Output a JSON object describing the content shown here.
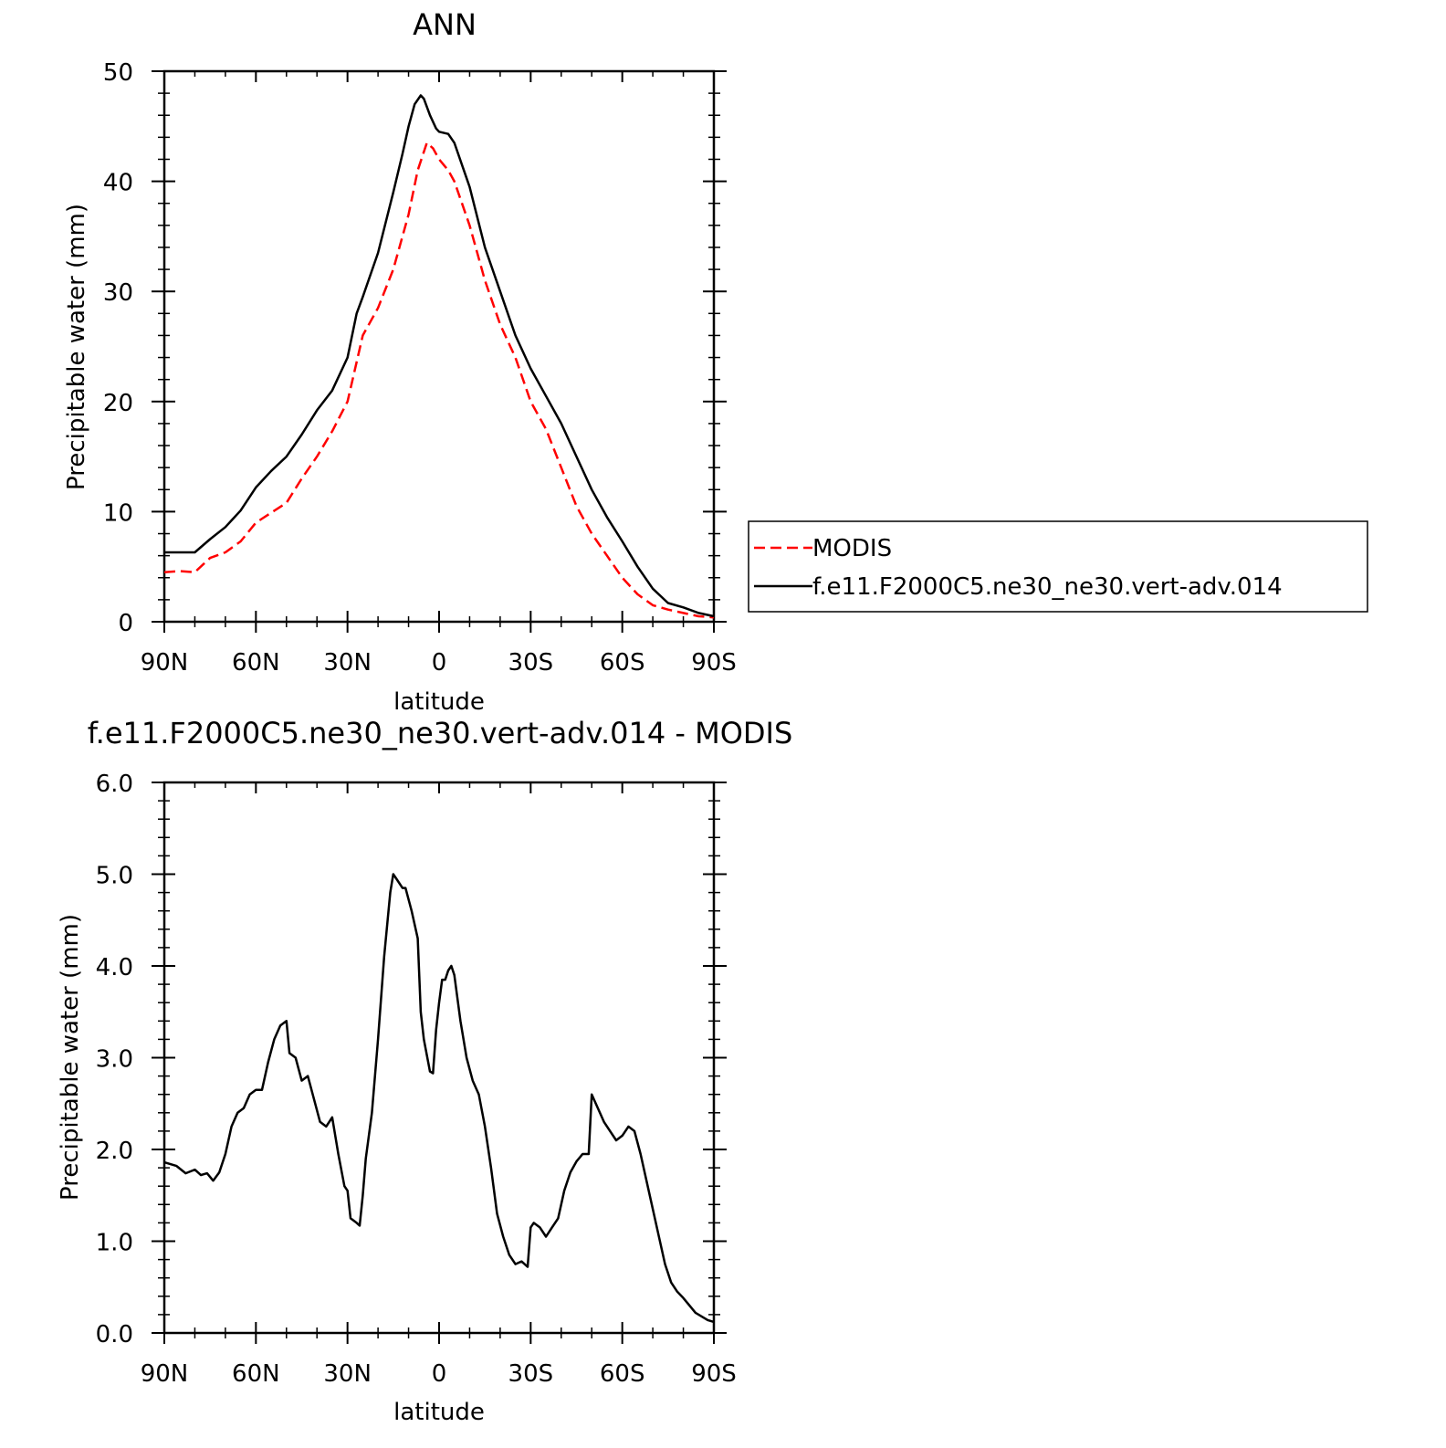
{
  "chart_data": [
    {
      "type": "line",
      "title": "ANN",
      "xlabel": "latitude",
      "ylabel": "Precipitable water (mm)",
      "xlim": [
        90,
        -90
      ],
      "ylim": [
        0,
        50
      ],
      "x_ticks": [
        90,
        60,
        30,
        0,
        -30,
        -60,
        -90
      ],
      "x_tick_labels": [
        "90N",
        "60N",
        "30N",
        "0",
        "30S",
        "60S",
        "90S"
      ],
      "y_ticks": [
        0,
        10,
        20,
        30,
        40,
        50
      ],
      "y_tick_labels": [
        "0",
        "10",
        "20",
        "30",
        "40",
        "50"
      ],
      "legend_position": "right",
      "series": [
        {
          "name": "MODIS",
          "color": "#ff0000",
          "style": "dashed",
          "points": [
            [
              90,
              4.5
            ],
            [
              85,
              4.6
            ],
            [
              80,
              4.5
            ],
            [
              75,
              5.8
            ],
            [
              70,
              6.3
            ],
            [
              65,
              7.3
            ],
            [
              60,
              9.0
            ],
            [
              55,
              9.9
            ],
            [
              50,
              10.8
            ],
            [
              45,
              13.0
            ],
            [
              40,
              15.0
            ],
            [
              35,
              17.3
            ],
            [
              30,
              20.0
            ],
            [
              25,
              26.0
            ],
            [
              20,
              28.5
            ],
            [
              15,
              32.0
            ],
            [
              10,
              37.0
            ],
            [
              7,
              41.0
            ],
            [
              4,
              43.5
            ],
            [
              2,
              43.0
            ],
            [
              0,
              42.0
            ],
            [
              -3,
              41.0
            ],
            [
              -5,
              40.0
            ],
            [
              -10,
              36.0
            ],
            [
              -15,
              31.0
            ],
            [
              -20,
              27.0
            ],
            [
              -25,
              24.0
            ],
            [
              -30,
              20.0
            ],
            [
              -35,
              17.5
            ],
            [
              -40,
              14.0
            ],
            [
              -45,
              10.5
            ],
            [
              -50,
              8.0
            ],
            [
              -55,
              6.0
            ],
            [
              -60,
              4.0
            ],
            [
              -65,
              2.5
            ],
            [
              -70,
              1.5
            ],
            [
              -75,
              1.1
            ],
            [
              -80,
              0.8
            ],
            [
              -85,
              0.5
            ],
            [
              -90,
              0.4
            ]
          ]
        },
        {
          "name": "f.e11.F2000C5.ne30_ne30.vert-adv.014",
          "color": "#000000",
          "style": "solid",
          "points": [
            [
              90,
              6.3
            ],
            [
              85,
              6.3
            ],
            [
              80,
              6.3
            ],
            [
              75,
              7.5
            ],
            [
              70,
              8.6
            ],
            [
              65,
              10.1
            ],
            [
              60,
              12.2
            ],
            [
              55,
              13.7
            ],
            [
              50,
              15.0
            ],
            [
              45,
              17.0
            ],
            [
              40,
              19.2
            ],
            [
              35,
              21.0
            ],
            [
              30,
              24.0
            ],
            [
              27,
              28.0
            ],
            [
              25,
              29.5
            ],
            [
              20,
              33.5
            ],
            [
              15,
              39.0
            ],
            [
              12,
              42.5
            ],
            [
              10,
              45.0
            ],
            [
              8,
              47.0
            ],
            [
              6,
              47.8
            ],
            [
              5,
              47.5
            ],
            [
              3,
              46.0
            ],
            [
              1,
              44.8
            ],
            [
              0,
              44.5
            ],
            [
              -3,
              44.3
            ],
            [
              -5,
              43.5
            ],
            [
              -10,
              39.5
            ],
            [
              -15,
              34.0
            ],
            [
              -20,
              30.0
            ],
            [
              -25,
              26.0
            ],
            [
              -30,
              23.0
            ],
            [
              -35,
              20.5
            ],
            [
              -40,
              18.0
            ],
            [
              -45,
              15.0
            ],
            [
              -50,
              12.0
            ],
            [
              -55,
              9.5
            ],
            [
              -60,
              7.3
            ],
            [
              -65,
              5.0
            ],
            [
              -70,
              3.0
            ],
            [
              -75,
              1.7
            ],
            [
              -80,
              1.3
            ],
            [
              -85,
              0.8
            ],
            [
              -90,
              0.5
            ]
          ]
        }
      ]
    },
    {
      "type": "line",
      "title": "f.e11.F2000C5.ne30_ne30.vert-adv.014 - MODIS",
      "xlabel": "latitude",
      "ylabel": "Precipitable water (mm)",
      "xlim": [
        90,
        -90
      ],
      "ylim": [
        0,
        6
      ],
      "x_ticks": [
        90,
        60,
        30,
        0,
        -30,
        -60,
        -90
      ],
      "x_tick_labels": [
        "90N",
        "60N",
        "30N",
        "0",
        "30S",
        "60S",
        "90S"
      ],
      "y_ticks": [
        0,
        1,
        2,
        3,
        4,
        5,
        6
      ],
      "y_tick_labels": [
        "0.0",
        "1.0",
        "2.0",
        "3.0",
        "4.0",
        "5.0",
        "6.0"
      ],
      "series": [
        {
          "color": "#000000",
          "style": "solid",
          "points": [
            [
              90,
              1.86
            ],
            [
              86,
              1.82
            ],
            [
              83,
              1.74
            ],
            [
              80,
              1.78
            ],
            [
              78,
              1.72
            ],
            [
              76,
              1.74
            ],
            [
              74,
              1.66
            ],
            [
              72,
              1.75
            ],
            [
              70,
              1.95
            ],
            [
              68,
              2.25
            ],
            [
              66,
              2.4
            ],
            [
              64,
              2.45
            ],
            [
              62,
              2.6
            ],
            [
              60,
              2.65
            ],
            [
              58,
              2.65
            ],
            [
              56,
              2.95
            ],
            [
              54,
              3.2
            ],
            [
              52,
              3.35
            ],
            [
              50,
              3.4
            ],
            [
              49,
              3.05
            ],
            [
              47,
              3.0
            ],
            [
              45,
              2.75
            ],
            [
              43,
              2.8
            ],
            [
              41,
              2.55
            ],
            [
              39,
              2.3
            ],
            [
              37,
              2.25
            ],
            [
              35,
              2.35
            ],
            [
              33,
              1.95
            ],
            [
              31,
              1.6
            ],
            [
              30,
              1.55
            ],
            [
              29,
              1.25
            ],
            [
              27,
              1.2
            ],
            [
              26,
              1.17
            ],
            [
              25,
              1.5
            ],
            [
              24,
              1.9
            ],
            [
              22,
              2.4
            ],
            [
              20,
              3.2
            ],
            [
              18,
              4.1
            ],
            [
              16,
              4.8
            ],
            [
              15,
              5.0
            ],
            [
              14,
              4.95
            ],
            [
              12,
              4.85
            ],
            [
              11,
              4.85
            ],
            [
              9,
              4.6
            ],
            [
              7,
              4.3
            ],
            [
              6,
              3.5
            ],
            [
              5,
              3.2
            ],
            [
              3,
              2.85
            ],
            [
              2,
              2.83
            ],
            [
              1,
              3.3
            ],
            [
              0,
              3.6
            ],
            [
              -1,
              3.85
            ],
            [
              -2,
              3.85
            ],
            [
              -3,
              3.95
            ],
            [
              -4,
              4.0
            ],
            [
              -5,
              3.9
            ],
            [
              -7,
              3.4
            ],
            [
              -9,
              3.0
            ],
            [
              -11,
              2.75
            ],
            [
              -13,
              2.6
            ],
            [
              -15,
              2.25
            ],
            [
              -17,
              1.8
            ],
            [
              -19,
              1.3
            ],
            [
              -21,
              1.05
            ],
            [
              -23,
              0.85
            ],
            [
              -25,
              0.75
            ],
            [
              -27,
              0.78
            ],
            [
              -29,
              0.72
            ],
            [
              -30,
              1.15
            ],
            [
              -31,
              1.2
            ],
            [
              -33,
              1.15
            ],
            [
              -35,
              1.05
            ],
            [
              -37,
              1.15
            ],
            [
              -39,
              1.25
            ],
            [
              -41,
              1.55
            ],
            [
              -43,
              1.75
            ],
            [
              -45,
              1.87
            ],
            [
              -47,
              1.95
            ],
            [
              -49,
              1.95
            ],
            [
              -50,
              2.6
            ],
            [
              -52,
              2.45
            ],
            [
              -54,
              2.3
            ],
            [
              -56,
              2.2
            ],
            [
              -58,
              2.1
            ],
            [
              -60,
              2.15
            ],
            [
              -62,
              2.25
            ],
            [
              -64,
              2.2
            ],
            [
              -66,
              1.95
            ],
            [
              -68,
              1.65
            ],
            [
              -70,
              1.35
            ],
            [
              -72,
              1.05
            ],
            [
              -74,
              0.75
            ],
            [
              -76,
              0.55
            ],
            [
              -78,
              0.45
            ],
            [
              -80,
              0.38
            ],
            [
              -82,
              0.3
            ],
            [
              -84,
              0.22
            ],
            [
              -86,
              0.18
            ],
            [
              -88,
              0.14
            ],
            [
              -90,
              0.12
            ]
          ]
        }
      ]
    }
  ]
}
